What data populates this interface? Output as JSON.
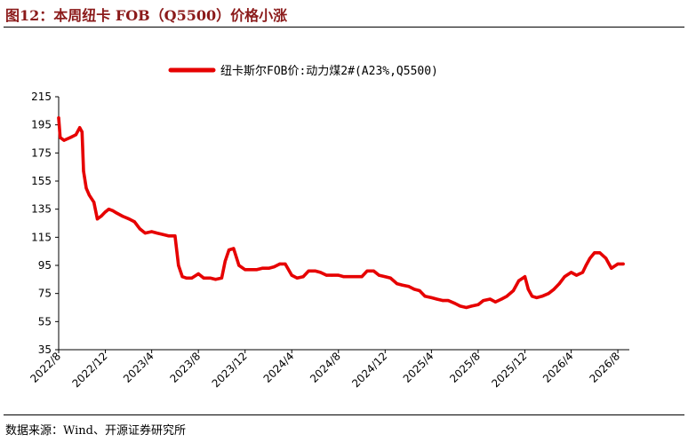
{
  "figure": {
    "title": "图12：本周纽卡 FOB（Q5500）价格小涨",
    "source": "数据来源：Wind、开源证券研究所"
  },
  "colors": {
    "line": "#e60000",
    "axis": "#000000",
    "title": "#8b1a1a"
  },
  "chart_data": {
    "type": "line",
    "title": "",
    "xlabel": "",
    "ylabel": "",
    "ylim": [
      35,
      215
    ],
    "yticks": [
      35,
      55,
      75,
      95,
      115,
      135,
      155,
      175,
      195,
      215
    ],
    "xlim": [
      "2022-08-01",
      "2026-08-31"
    ],
    "xticks": [
      "2022/8",
      "2022/12",
      "2023/4",
      "2023/8",
      "2023/12",
      "2024/4",
      "2024/8",
      "2024/12",
      "2025/4",
      "2025/8",
      "2025/12",
      "2026/4",
      "2026/8"
    ],
    "grid": false,
    "legend": "top-center",
    "series": [
      {
        "name": "纽卡斯尔FOB价:动力煤2#(A23%,Q5500)",
        "x": [
          "2022-08-01",
          "2022-08-05",
          "2022-08-15",
          "2022-09-01",
          "2022-09-15",
          "2022-09-25",
          "2022-10-01",
          "2022-10-05",
          "2022-10-12",
          "2022-10-20",
          "2022-11-01",
          "2022-11-10",
          "2022-11-20",
          "2022-12-01",
          "2022-12-10",
          "2022-12-20",
          "2023-01-01",
          "2023-01-15",
          "2023-02-01",
          "2023-02-15",
          "2023-03-01",
          "2023-03-15",
          "2023-04-01",
          "2023-04-15",
          "2023-05-01",
          "2023-05-15",
          "2023-06-01",
          "2023-06-10",
          "2023-06-20",
          "2023-07-01",
          "2023-07-15",
          "2023-08-01",
          "2023-08-15",
          "2023-09-01",
          "2023-09-15",
          "2023-10-01",
          "2023-10-10",
          "2023-10-20",
          "2023-11-01",
          "2023-11-15",
          "2023-12-01",
          "2023-12-15",
          "2024-01-01",
          "2024-01-15",
          "2024-02-01",
          "2024-02-15",
          "2024-03-01",
          "2024-03-15",
          "2024-04-01",
          "2024-04-15",
          "2024-05-01",
          "2024-05-15",
          "2024-06-01",
          "2024-06-15",
          "2024-07-01",
          "2024-07-15",
          "2024-08-01",
          "2024-08-15",
          "2024-09-01",
          "2024-09-15",
          "2024-10-01",
          "2024-10-15",
          "2024-11-01",
          "2024-11-15",
          "2024-12-01",
          "2024-12-15",
          "2025-01-01",
          "2025-01-15",
          "2025-02-01",
          "2025-02-15",
          "2025-03-01",
          "2025-03-15",
          "2025-04-01",
          "2025-04-15",
          "2025-05-01",
          "2025-05-15",
          "2025-06-01",
          "2025-06-15",
          "2025-07-01",
          "2025-07-15",
          "2025-08-01",
          "2025-08-15",
          "2025-09-01",
          "2025-09-15",
          "2025-10-01",
          "2025-10-15",
          "2025-11-01",
          "2025-11-15",
          "2025-12-01",
          "2025-12-10",
          "2025-12-20",
          "2026-01-01",
          "2026-01-15",
          "2026-02-01",
          "2026-02-15",
          "2026-03-01",
          "2026-03-15",
          "2026-04-01",
          "2026-04-15",
          "2026-05-01",
          "2026-05-10",
          "2026-05-20",
          "2026-06-01",
          "2026-06-15",
          "2026-07-01",
          "2026-07-15",
          "2026-08-01",
          "2026-08-15"
        ],
        "y": [
          200,
          186,
          184,
          186,
          188,
          193,
          190,
          162,
          150,
          145,
          140,
          128,
          130,
          133,
          135,
          134,
          132,
          130,
          128,
          126,
          121,
          118,
          119,
          118,
          117,
          116,
          116,
          95,
          87,
          86,
          86,
          89,
          86,
          86,
          85,
          86,
          98,
          106,
          107,
          95,
          92,
          92,
          92,
          93,
          93,
          94,
          96,
          96,
          88,
          86,
          87,
          91,
          91,
          90,
          88,
          88,
          88,
          87,
          87,
          87,
          87,
          91,
          91,
          88,
          87,
          86,
          82,
          81,
          80,
          78,
          77,
          73,
          72,
          71,
          70,
          70,
          68,
          66,
          65,
          66,
          67,
          70,
          71,
          69,
          71,
          73,
          77,
          84,
          87,
          78,
          73,
          72,
          73,
          75,
          78,
          82,
          87,
          90,
          88,
          90,
          95,
          100,
          104,
          104,
          100,
          93,
          96,
          96
        ]
      }
    ]
  }
}
